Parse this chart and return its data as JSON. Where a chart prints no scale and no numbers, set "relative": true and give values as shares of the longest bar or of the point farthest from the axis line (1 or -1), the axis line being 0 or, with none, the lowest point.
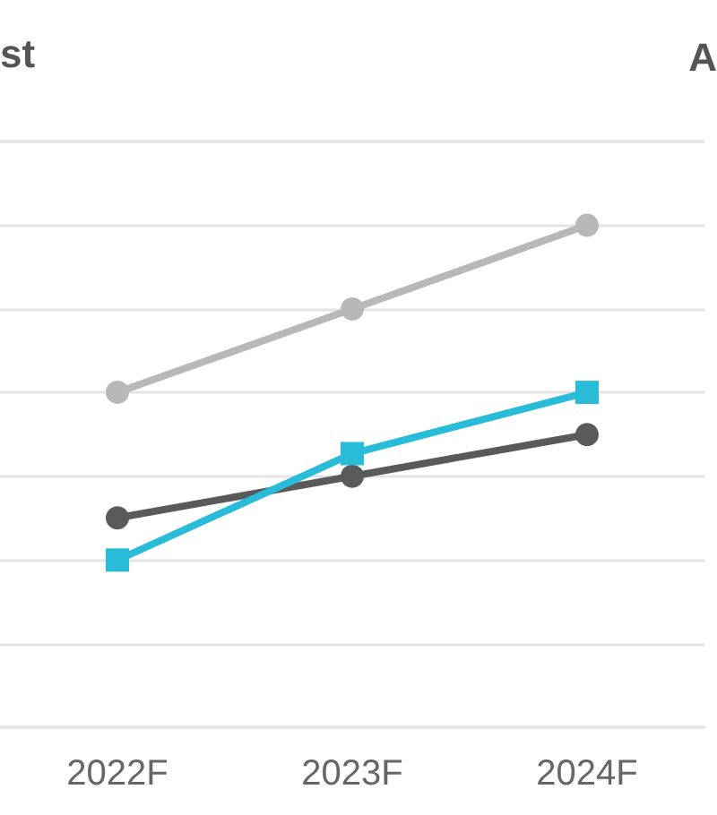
{
  "chart_data": {
    "type": "line",
    "title": "st",
    "annotations": [
      "A"
    ],
    "categories": [
      "2022F",
      "2023F",
      "2024F"
    ],
    "relative": true,
    "grid": "y",
    "series": [
      {
        "color": "#b8b8b8",
        "marker": "circle",
        "values": [
          0.667,
          0.833,
          1
        ]
      },
      {
        "color": "#5a5a5a",
        "marker": "circle",
        "values": [
          0.417,
          0.5,
          0.583
        ]
      },
      {
        "color": "#29bcd8",
        "marker": "square",
        "values": [
          0.333,
          0.545,
          0.667
        ]
      }
    ]
  }
}
